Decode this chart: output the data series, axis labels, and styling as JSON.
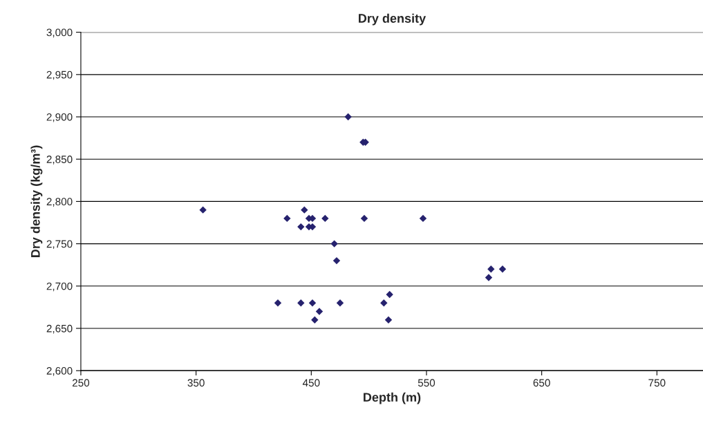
{
  "chart_data": {
    "type": "scatter",
    "title": "Dry density",
    "xlabel": "Depth (m)",
    "ylabel": "Dry density (kg/m³)",
    "x": [
      356,
      429,
      444,
      441,
      448,
      451,
      448,
      451,
      462,
      421,
      441,
      451,
      453,
      457,
      470,
      472,
      475,
      482,
      495,
      497,
      496,
      547,
      513,
      517,
      518,
      604,
      606,
      616
    ],
    "series": [
      {
        "color": "#26226e",
        "values": [
          2790,
          2780,
          2790,
          2770,
          2770,
          2770,
          2780,
          2780,
          2780,
          2680,
          2680,
          2680,
          2660,
          2670,
          2750,
          2730,
          2680,
          2900,
          2870,
          2870,
          2780,
          2780,
          2680,
          2660,
          2690,
          2710,
          2720,
          2720
        ]
      }
    ],
    "marker": "diamond",
    "grid": "y",
    "xlim": [
      250,
      790
    ],
    "xticks": [
      250,
      350,
      450,
      550,
      650,
      750
    ],
    "ylim": [
      2600,
      3000
    ],
    "yticks": [
      {
        "value": 2600,
        "label": "2,600"
      },
      {
        "value": 2650,
        "label": "2,650"
      },
      {
        "value": 2700,
        "label": "2,700"
      },
      {
        "value": 2750,
        "label": "2,750"
      },
      {
        "value": 2800,
        "label": "2,800"
      },
      {
        "value": 2850,
        "label": "2,850"
      },
      {
        "value": 2900,
        "label": "2,900"
      },
      {
        "value": 2950,
        "label": "2,950"
      },
      {
        "value": 3000,
        "label": "3,000"
      }
    ]
  }
}
